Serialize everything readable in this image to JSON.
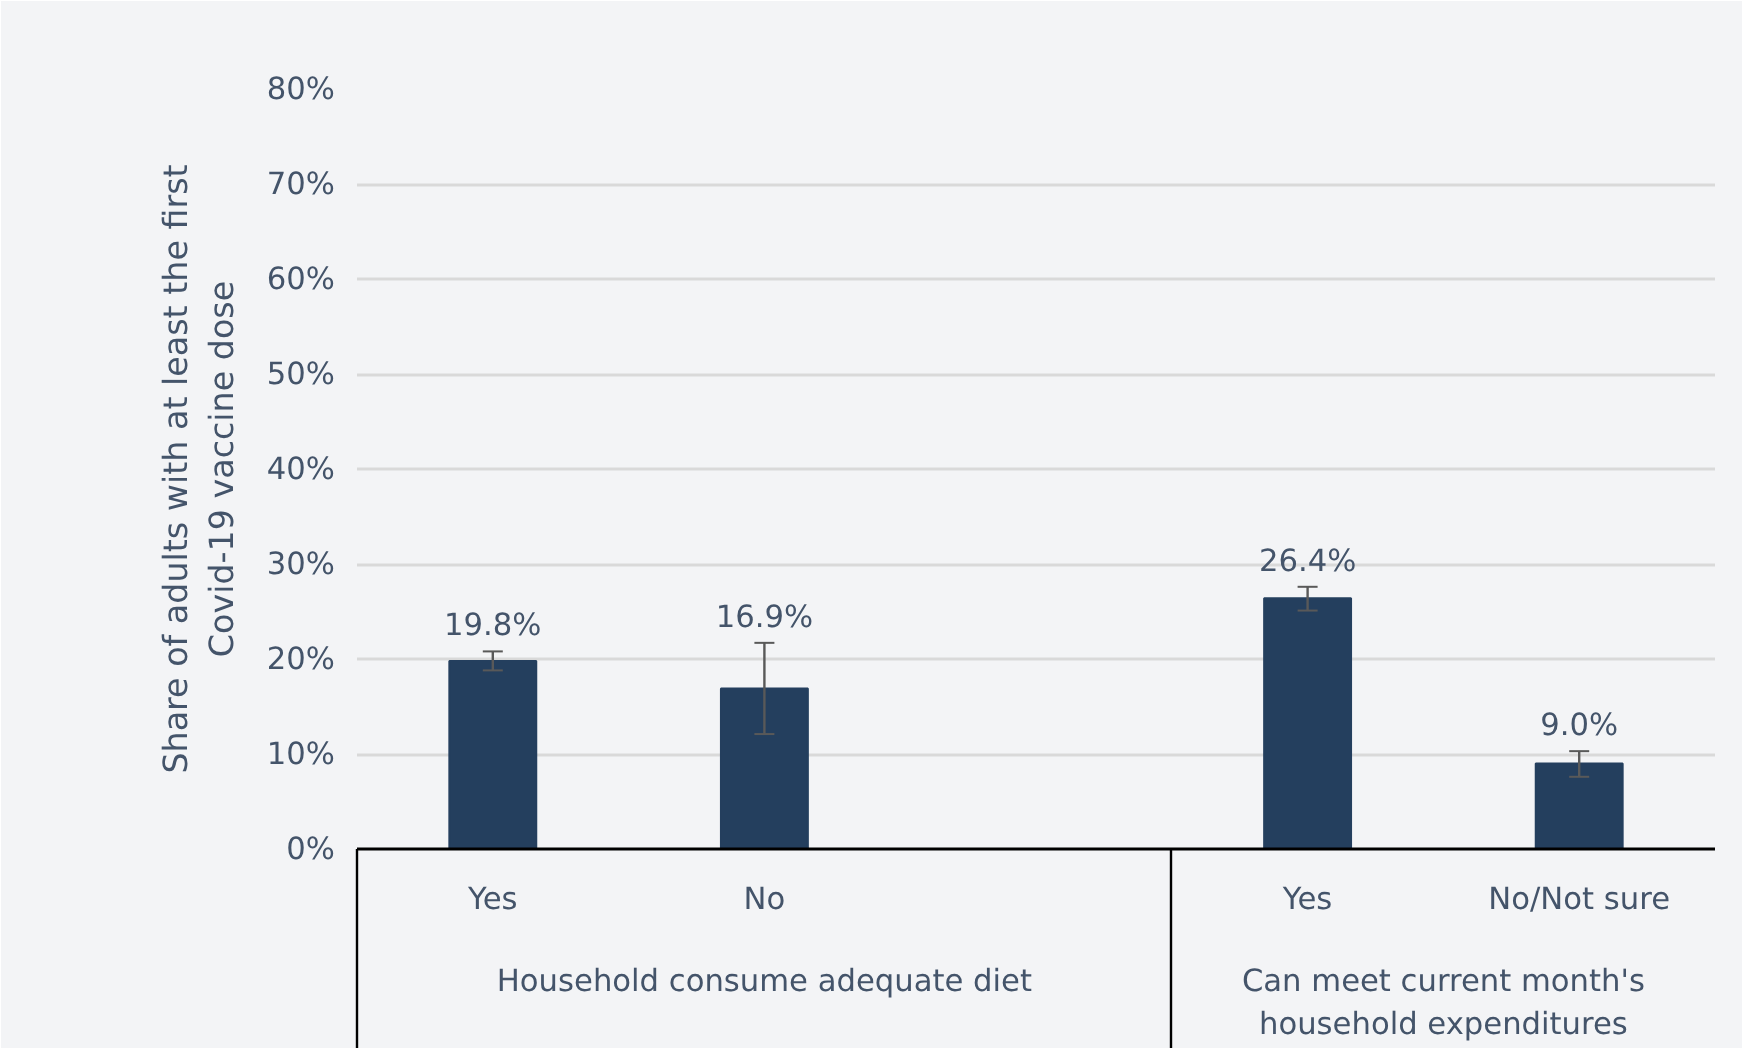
{
  "chart_data": {
    "type": "bar",
    "categories": [
      "Yes",
      "No",
      null,
      "Yes",
      "No/Not sure"
    ],
    "values": [
      19.8,
      16.9,
      null,
      26.4,
      9.0
    ],
    "errors": [
      [
        18.8,
        20.8
      ],
      [
        12.1,
        21.7
      ],
      null,
      [
        25.1,
        27.6
      ],
      [
        7.6,
        10.3
      ]
    ],
    "color": "#243f5e",
    "data_labels": true,
    "value_labels": [
      "19.8%",
      "16.9%",
      null,
      "26.4%",
      "9.0%"
    ],
    "ylabel": "Share of adults with at least the first Covid-19 vaccine dose",
    "ylim": [
      0,
      80
    ],
    "yticks": [
      {
        "value": 0,
        "label": "0%"
      },
      {
        "value": 10,
        "label": "10%"
      },
      {
        "value": 20,
        "label": "20%"
      },
      {
        "value": 30,
        "label": "30%"
      },
      {
        "value": 40,
        "label": "40%"
      },
      {
        "value": 50,
        "label": "50%"
      },
      {
        "value": 60,
        "label": "60%"
      },
      {
        "value": 70,
        "label": "70%"
      },
      {
        "value": 80,
        "label": "80%"
      }
    ],
    "grid": "y",
    "annotations": [
      "Household consume adequate diet",
      "Can meet current month's household expenditures"
    ]
  }
}
